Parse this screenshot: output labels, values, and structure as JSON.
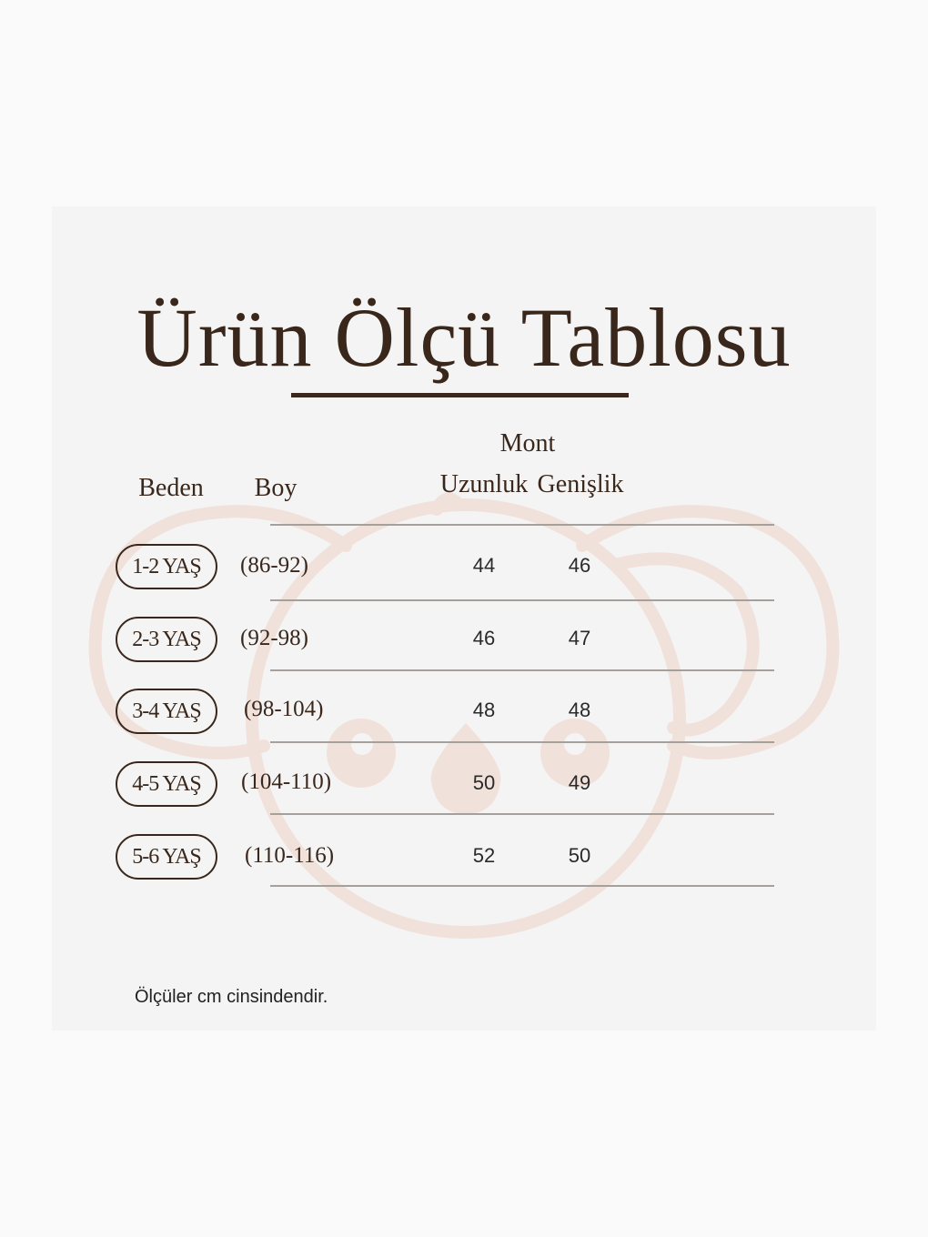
{
  "title": "Ürün Ölçü Tablosu",
  "header": {
    "group": "Mont",
    "beden": "Beden",
    "boy": "Boy",
    "uzunluk": "Uzunluk",
    "genislik": "Genişlik"
  },
  "rows": [
    {
      "beden": "1-2 YAŞ",
      "boy": "(86-92)",
      "uzunluk": "44",
      "genislik": "46"
    },
    {
      "beden": "2-3 YAŞ",
      "boy": "(92-98)",
      "uzunluk": "46",
      "genislik": "47"
    },
    {
      "beden": "3-4 YAŞ",
      "boy": "(98-104)",
      "uzunluk": "48",
      "genislik": "48"
    },
    {
      "beden": "4-5 YAŞ",
      "boy": "(104-110)",
      "uzunluk": "50",
      "genislik": "49"
    },
    {
      "beden": "5-6 YAŞ",
      "boy": "(110-116)",
      "uzunluk": "52",
      "genislik": "50"
    }
  ],
  "note": "Ölçüler cm cinsindendir.",
  "colors": {
    "text": "#3a271c",
    "watermark": "#f1e1db",
    "card": "#f4f4f4"
  },
  "watermark_icon": "koala-icon"
}
